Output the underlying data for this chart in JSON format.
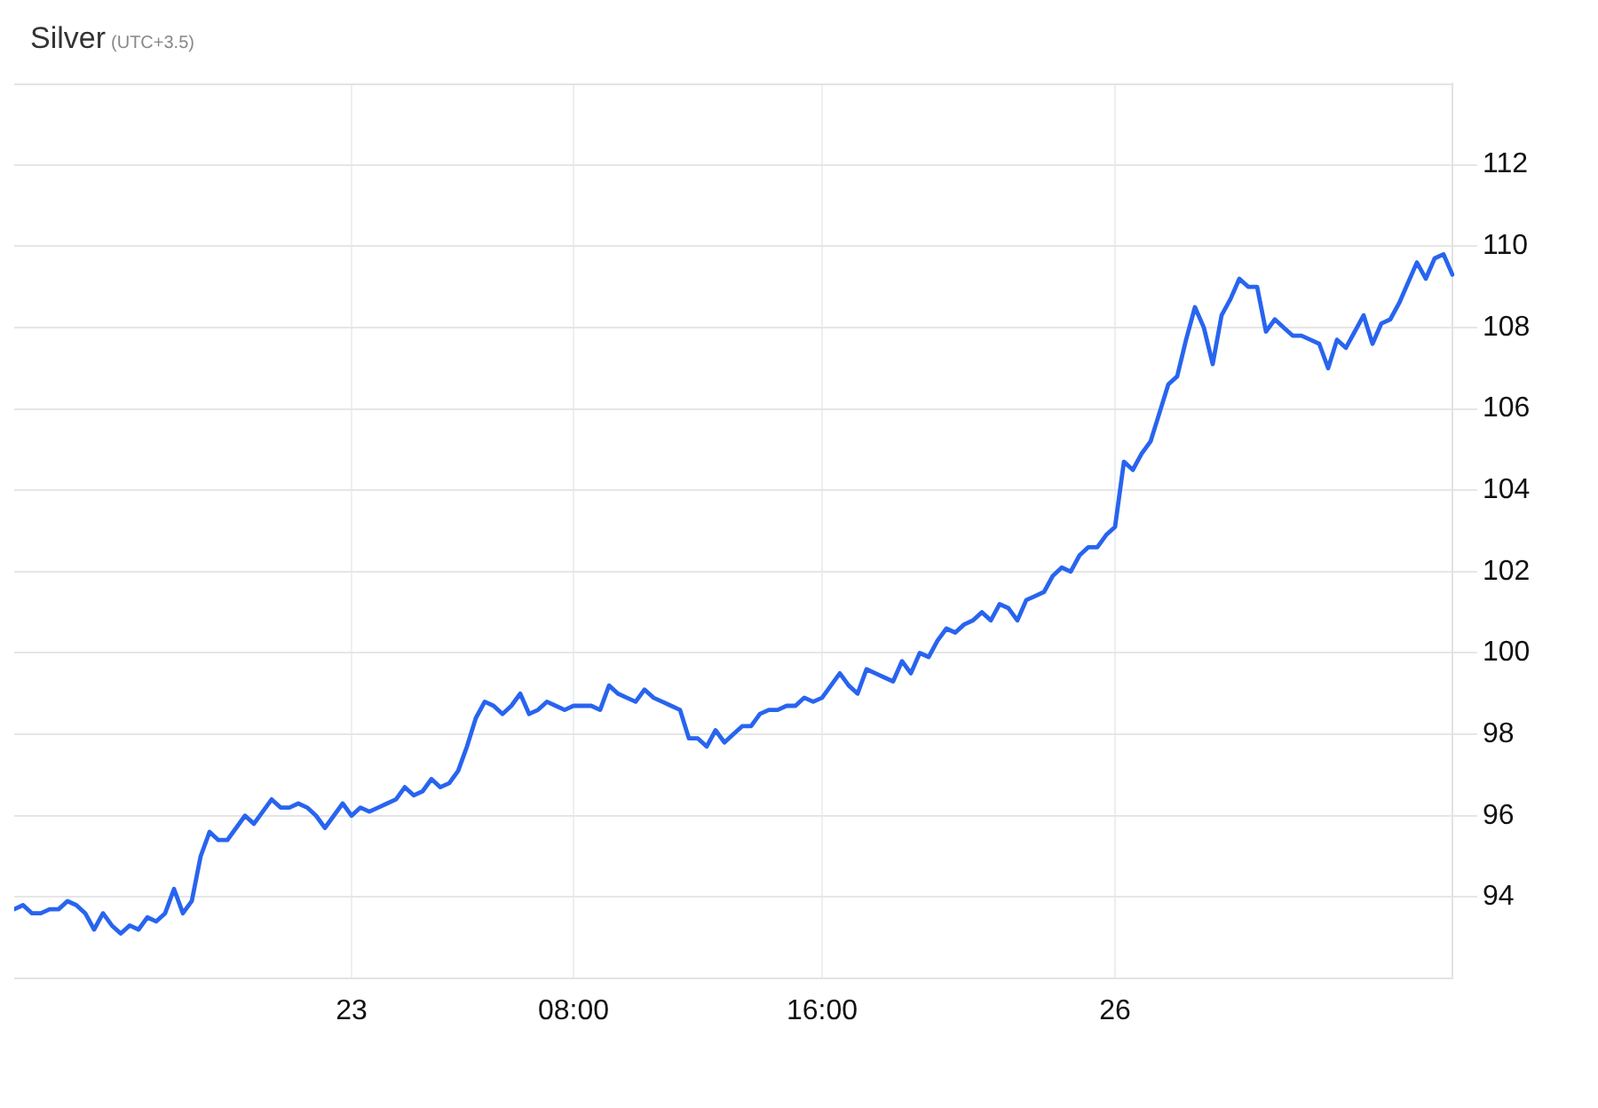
{
  "chart_data": {
    "type": "line",
    "title": "Silver",
    "subtitle": "(UTC+3.5)",
    "categories": [
      null,
      null,
      null,
      null,
      null,
      null,
      null,
      null,
      null,
      null,
      null,
      null,
      null,
      null,
      null,
      null,
      null,
      null,
      null,
      null,
      null,
      null,
      null,
      null,
      null,
      null,
      null,
      null,
      null,
      null,
      null,
      null,
      null,
      null,
      null,
      null,
      null,
      null,
      "23",
      null,
      null,
      null,
      null,
      null,
      null,
      null,
      null,
      null,
      null,
      null,
      null,
      null,
      null,
      null,
      null,
      null,
      null,
      null,
      null,
      null,
      null,
      null,
      null,
      "08:00",
      null,
      null,
      null,
      null,
      null,
      null,
      null,
      null,
      null,
      null,
      null,
      null,
      null,
      null,
      null,
      null,
      null,
      null,
      null,
      null,
      null,
      null,
      null,
      null,
      null,
      null,
      null,
      "16:00",
      null,
      null,
      null,
      null,
      null,
      null,
      null,
      null,
      null,
      null,
      null,
      null,
      null,
      null,
      null,
      null,
      null,
      null,
      null,
      null,
      null,
      null,
      null,
      null,
      null,
      null,
      null,
      null,
      null,
      null,
      null,
      null,
      "26",
      null,
      null,
      null,
      null,
      null,
      null,
      null,
      null,
      null,
      null,
      null,
      null,
      null,
      null,
      null,
      null,
      null,
      null,
      null,
      null,
      null,
      null,
      null,
      null,
      null,
      null,
      null,
      null,
      null,
      null,
      null,
      null,
      null,
      null,
      null,
      null,
      null,
      null
    ],
    "values": [
      93.7,
      93.8,
      93.6,
      93.6,
      93.7,
      93.7,
      93.9,
      93.8,
      93.6,
      93.2,
      93.6,
      93.3,
      93.1,
      93.3,
      93.2,
      93.5,
      93.4,
      93.6,
      94.2,
      93.6,
      93.9,
      95.0,
      95.6,
      95.4,
      95.4,
      95.7,
      96.0,
      95.8,
      96.1,
      96.4,
      96.2,
      96.2,
      96.3,
      96.2,
      96.0,
      95.7,
      96.0,
      96.3,
      96.0,
      96.2,
      96.1,
      96.2,
      96.3,
      96.4,
      96.7,
      96.5,
      96.6,
      96.9,
      96.7,
      96.8,
      97.1,
      97.7,
      98.4,
      98.8,
      98.7,
      98.5,
      98.7,
      99.0,
      98.5,
      98.6,
      98.8,
      98.7,
      98.6,
      98.7,
      98.7,
      98.7,
      98.6,
      99.2,
      99.0,
      98.9,
      98.8,
      99.1,
      98.9,
      98.8,
      98.7,
      98.6,
      97.9,
      97.9,
      97.7,
      98.1,
      97.8,
      98.0,
      98.2,
      98.2,
      98.5,
      98.6,
      98.6,
      98.7,
      98.7,
      98.9,
      98.8,
      98.9,
      99.2,
      99.5,
      99.2,
      99.0,
      99.6,
      99.5,
      99.4,
      99.3,
      99.8,
      99.5,
      100.0,
      99.9,
      100.3,
      100.6,
      100.5,
      100.7,
      100.8,
      101.0,
      100.8,
      101.2,
      101.1,
      100.8,
      101.3,
      101.4,
      101.5,
      101.9,
      102.1,
      102.0,
      102.4,
      102.6,
      102.6,
      102.9,
      103.1,
      104.7,
      104.5,
      104.9,
      105.2,
      105.9,
      106.6,
      106.8,
      107.7,
      108.5,
      108.0,
      107.1,
      108.3,
      108.7,
      109.2,
      109.0,
      109.0,
      107.9,
      108.2,
      108.0,
      107.8,
      107.8,
      107.7,
      107.6,
      107.0,
      107.7,
      107.5,
      107.9,
      108.3,
      107.6,
      108.1,
      108.2,
      108.6,
      109.1,
      109.6,
      109.2,
      109.7,
      109.8,
      109.3
    ],
    "color": "#2864ef",
    "ylim": [
      92,
      114
    ],
    "yticks": [
      94,
      96,
      98,
      100,
      102,
      104,
      106,
      108,
      110,
      112
    ],
    "grid": true
  }
}
